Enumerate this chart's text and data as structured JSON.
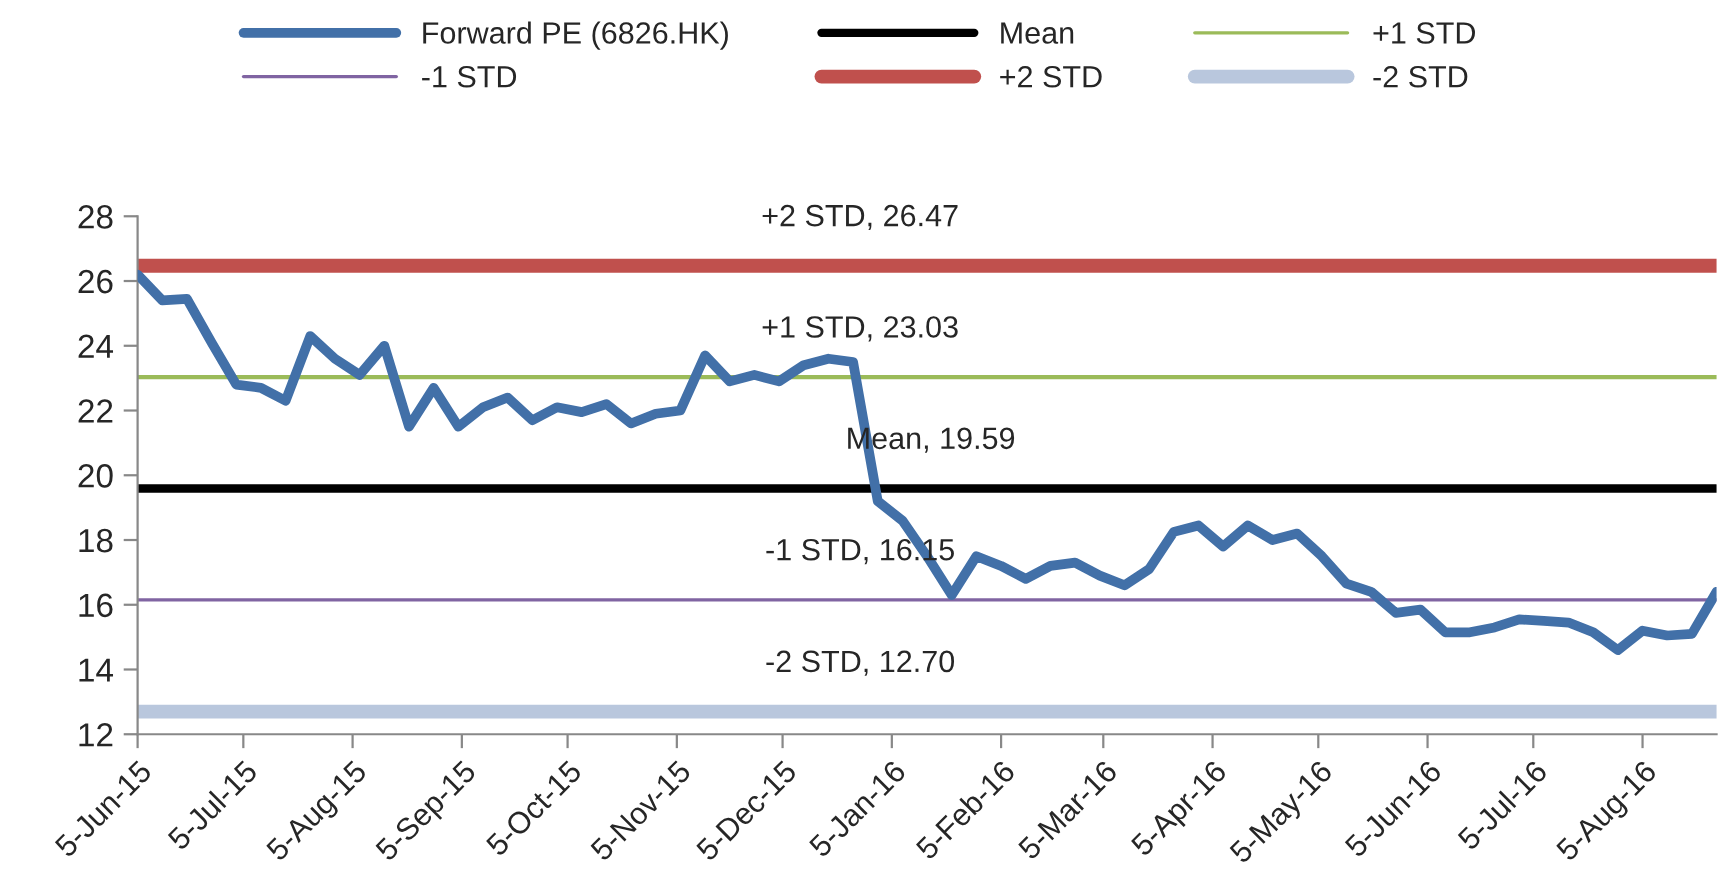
{
  "chart_data": {
    "type": "line",
    "x": [
      "2015-06-05",
      "2015-06-12",
      "2015-06-19",
      "2015-06-26",
      "2015-07-03",
      "2015-07-10",
      "2015-07-17",
      "2015-07-24",
      "2015-07-31",
      "2015-08-07",
      "2015-08-14",
      "2015-08-21",
      "2015-08-28",
      "2015-09-04",
      "2015-09-11",
      "2015-09-18",
      "2015-09-25",
      "2015-10-02",
      "2015-10-09",
      "2015-10-16",
      "2015-10-23",
      "2015-10-30",
      "2015-11-06",
      "2015-11-13",
      "2015-11-20",
      "2015-11-27",
      "2015-12-04",
      "2015-12-11",
      "2015-12-18",
      "2015-12-25",
      "2016-01-01",
      "2016-01-08",
      "2016-01-15",
      "2016-01-22",
      "2016-01-29",
      "2016-02-05",
      "2016-02-12",
      "2016-02-19",
      "2016-02-26",
      "2016-03-04",
      "2016-03-11",
      "2016-03-18",
      "2016-03-25",
      "2016-04-01",
      "2016-04-08",
      "2016-04-15",
      "2016-04-22",
      "2016-04-29",
      "2016-05-06",
      "2016-05-13",
      "2016-05-20",
      "2016-05-27",
      "2016-06-03",
      "2016-06-10",
      "2016-06-17",
      "2016-06-24",
      "2016-07-01",
      "2016-07-08",
      "2016-07-15",
      "2016-07-22",
      "2016-07-29",
      "2016-08-05",
      "2016-08-12",
      "2016-08-19",
      "2016-08-26"
    ],
    "series": [
      {
        "name": "Forward PE (6826.HK)",
        "color": "#4270a8",
        "values": [
          26.2,
          25.4,
          25.45,
          24.1,
          22.8,
          22.7,
          22.3,
          24.3,
          23.6,
          23.1,
          24.0,
          21.5,
          22.7,
          21.5,
          22.1,
          22.4,
          21.7,
          22.1,
          21.95,
          22.2,
          21.6,
          21.9,
          22.0,
          23.7,
          22.9,
          23.1,
          22.9,
          23.4,
          23.6,
          23.5,
          19.2,
          18.6,
          17.5,
          16.3,
          17.5,
          17.2,
          16.8,
          17.2,
          17.3,
          16.9,
          16.6,
          17.1,
          18.25,
          18.45,
          17.8,
          18.45,
          18.0,
          18.2,
          17.5,
          16.65,
          16.4,
          15.75,
          15.85,
          15.15,
          15.15,
          15.3,
          15.55,
          15.5,
          15.45,
          15.15,
          14.6,
          15.2,
          15.05,
          15.1,
          16.4
        ]
      }
    ],
    "ref_lines": [
      {
        "axis": "y",
        "value": 19.59,
        "label": "Mean",
        "color": "#000000"
      },
      {
        "axis": "y",
        "value": 23.03,
        "label": "+1 STD",
        "color": "#9bbb59"
      },
      {
        "axis": "y",
        "value": 16.15,
        "label": "-1 STD",
        "color": "#8064a2"
      },
      {
        "axis": "y",
        "value": 26.47,
        "label": "+2 STD",
        "color": "#c0504d"
      },
      {
        "axis": "y",
        "value": 12.7,
        "label": "-2 STD",
        "color": "#b9c7dd"
      }
    ],
    "annotations": [
      {
        "text": "+2 STD, 26.47",
        "x": "2015-12-27",
        "y": 26.47
      },
      {
        "text": "+1 STD, 23.03",
        "x": "2015-12-27",
        "y": 23.03
      },
      {
        "text": "Mean, 19.59",
        "x": "2016-01-16",
        "y": 19.59
      },
      {
        "text": "-1 STD, 16.15",
        "x": "2015-12-27",
        "y": 16.15
      },
      {
        "text": "-2 STD, 12.70",
        "x": "2015-12-27",
        "y": 12.7
      }
    ],
    "xlim": [
      "2015-06-05",
      "2016-08-26"
    ],
    "xticks": [
      {
        "value": "2015-06-05",
        "label": "5-Jun-15"
      },
      {
        "value": "2015-07-05",
        "label": "5-Jul-15"
      },
      {
        "value": "2015-08-05",
        "label": "5-Aug-15"
      },
      {
        "value": "2015-09-05",
        "label": "5-Sep-15"
      },
      {
        "value": "2015-10-05",
        "label": "5-Oct-15"
      },
      {
        "value": "2015-11-05",
        "label": "5-Nov-15"
      },
      {
        "value": "2015-12-05",
        "label": "5-Dec-15"
      },
      {
        "value": "2016-01-05",
        "label": "5-Jan-16"
      },
      {
        "value": "2016-02-05",
        "label": "5-Feb-16"
      },
      {
        "value": "2016-03-05",
        "label": "5-Mar-16"
      },
      {
        "value": "2016-04-05",
        "label": "5-Apr-16"
      },
      {
        "value": "2016-05-05",
        "label": "5-May-16"
      },
      {
        "value": "2016-06-05",
        "label": "5-Jun-16"
      },
      {
        "value": "2016-07-05",
        "label": "5-Jul-16"
      },
      {
        "value": "2016-08-05",
        "label": "5-Aug-16"
      }
    ],
    "ylim": [
      12,
      28
    ],
    "yticks": [
      12,
      14,
      16,
      18,
      20,
      22,
      24,
      26,
      28
    ],
    "grid": false,
    "legend": "top",
    "marker": "none",
    "line_style": "solid"
  }
}
